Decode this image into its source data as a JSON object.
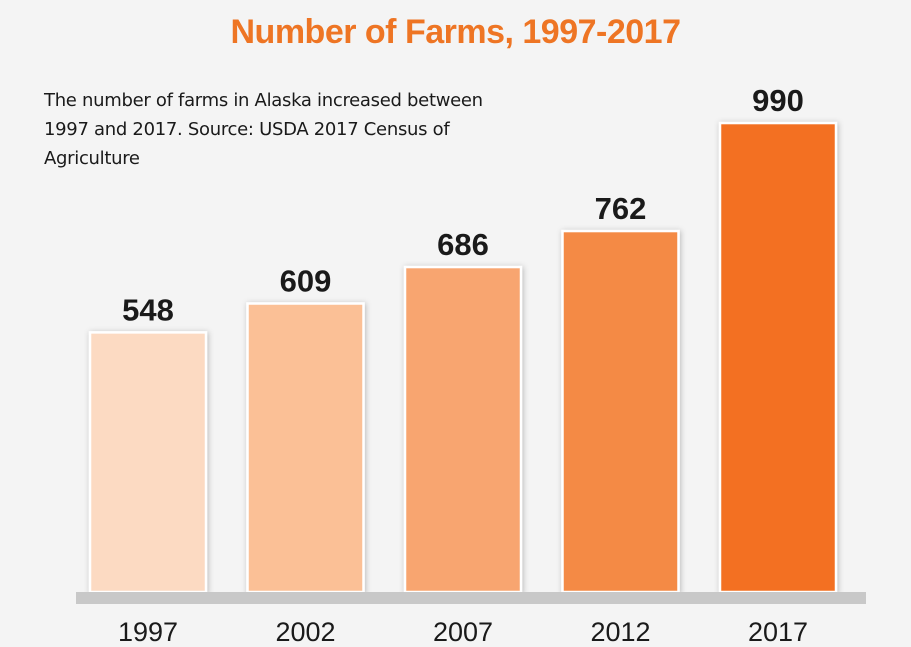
{
  "colors": {
    "title": "#ee7524",
    "background": "#f4f4f4",
    "baseline": "#c8c8c8",
    "text": "#1a1a1a",
    "bar_fills": [
      "#fcdac2",
      "#fbc096",
      "#f8a56f",
      "#f48a44",
      "#f37021"
    ]
  },
  "chart_data": {
    "type": "bar",
    "title": "Number of Farms, 1997-2017",
    "subtitle": "The number of farms in Alaska increased between 1997 and 2017. Source: USDA 2017 Census of Agriculture",
    "categories": [
      "1997",
      "2002",
      "2007",
      "2012",
      "2017"
    ],
    "values": [
      548,
      609,
      686,
      762,
      990
    ],
    "data_labels": [
      "548",
      "609",
      "686",
      "762",
      "990"
    ],
    "ylim": [
      0,
      1000
    ],
    "grid": false,
    "legend": "none"
  }
}
